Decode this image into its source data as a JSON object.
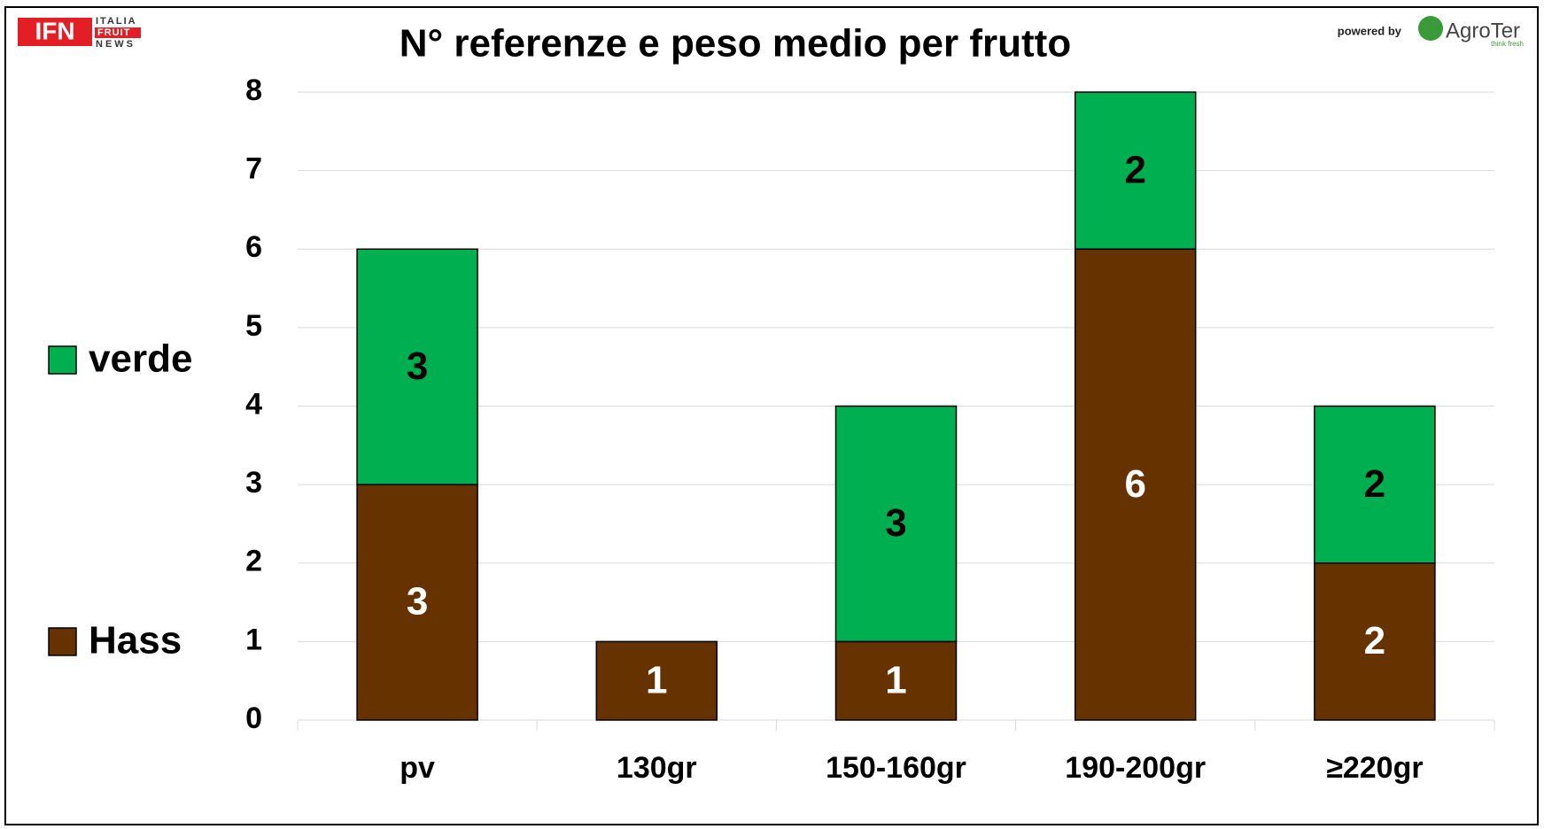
{
  "chart_data": {
    "type": "stacked_bar",
    "title": "N° referenze e peso medio per frutto",
    "categories": [
      "pv",
      "130gr",
      "150-160gr",
      "190-200gr",
      "≥220gr"
    ],
    "series": [
      {
        "name": "Hass",
        "color": "#663300",
        "values": [
          3,
          1,
          1,
          6,
          2
        ]
      },
      {
        "name": "verde",
        "color": "#00b050",
        "values": [
          3,
          0,
          3,
          2,
          2
        ]
      }
    ],
    "ylim": [
      0,
      8
    ],
    "yticks": [
      0,
      1,
      2,
      3,
      4,
      5,
      6,
      7,
      8
    ],
    "grid": true,
    "legend": "left",
    "logos": {
      "ifn": "IFN",
      "italia": "ITALIA",
      "fruit": "FRUIT",
      "news": "NEWS",
      "powered": "powered by",
      "agroter": "AgroTer",
      "tagline": "think fresh"
    }
  }
}
